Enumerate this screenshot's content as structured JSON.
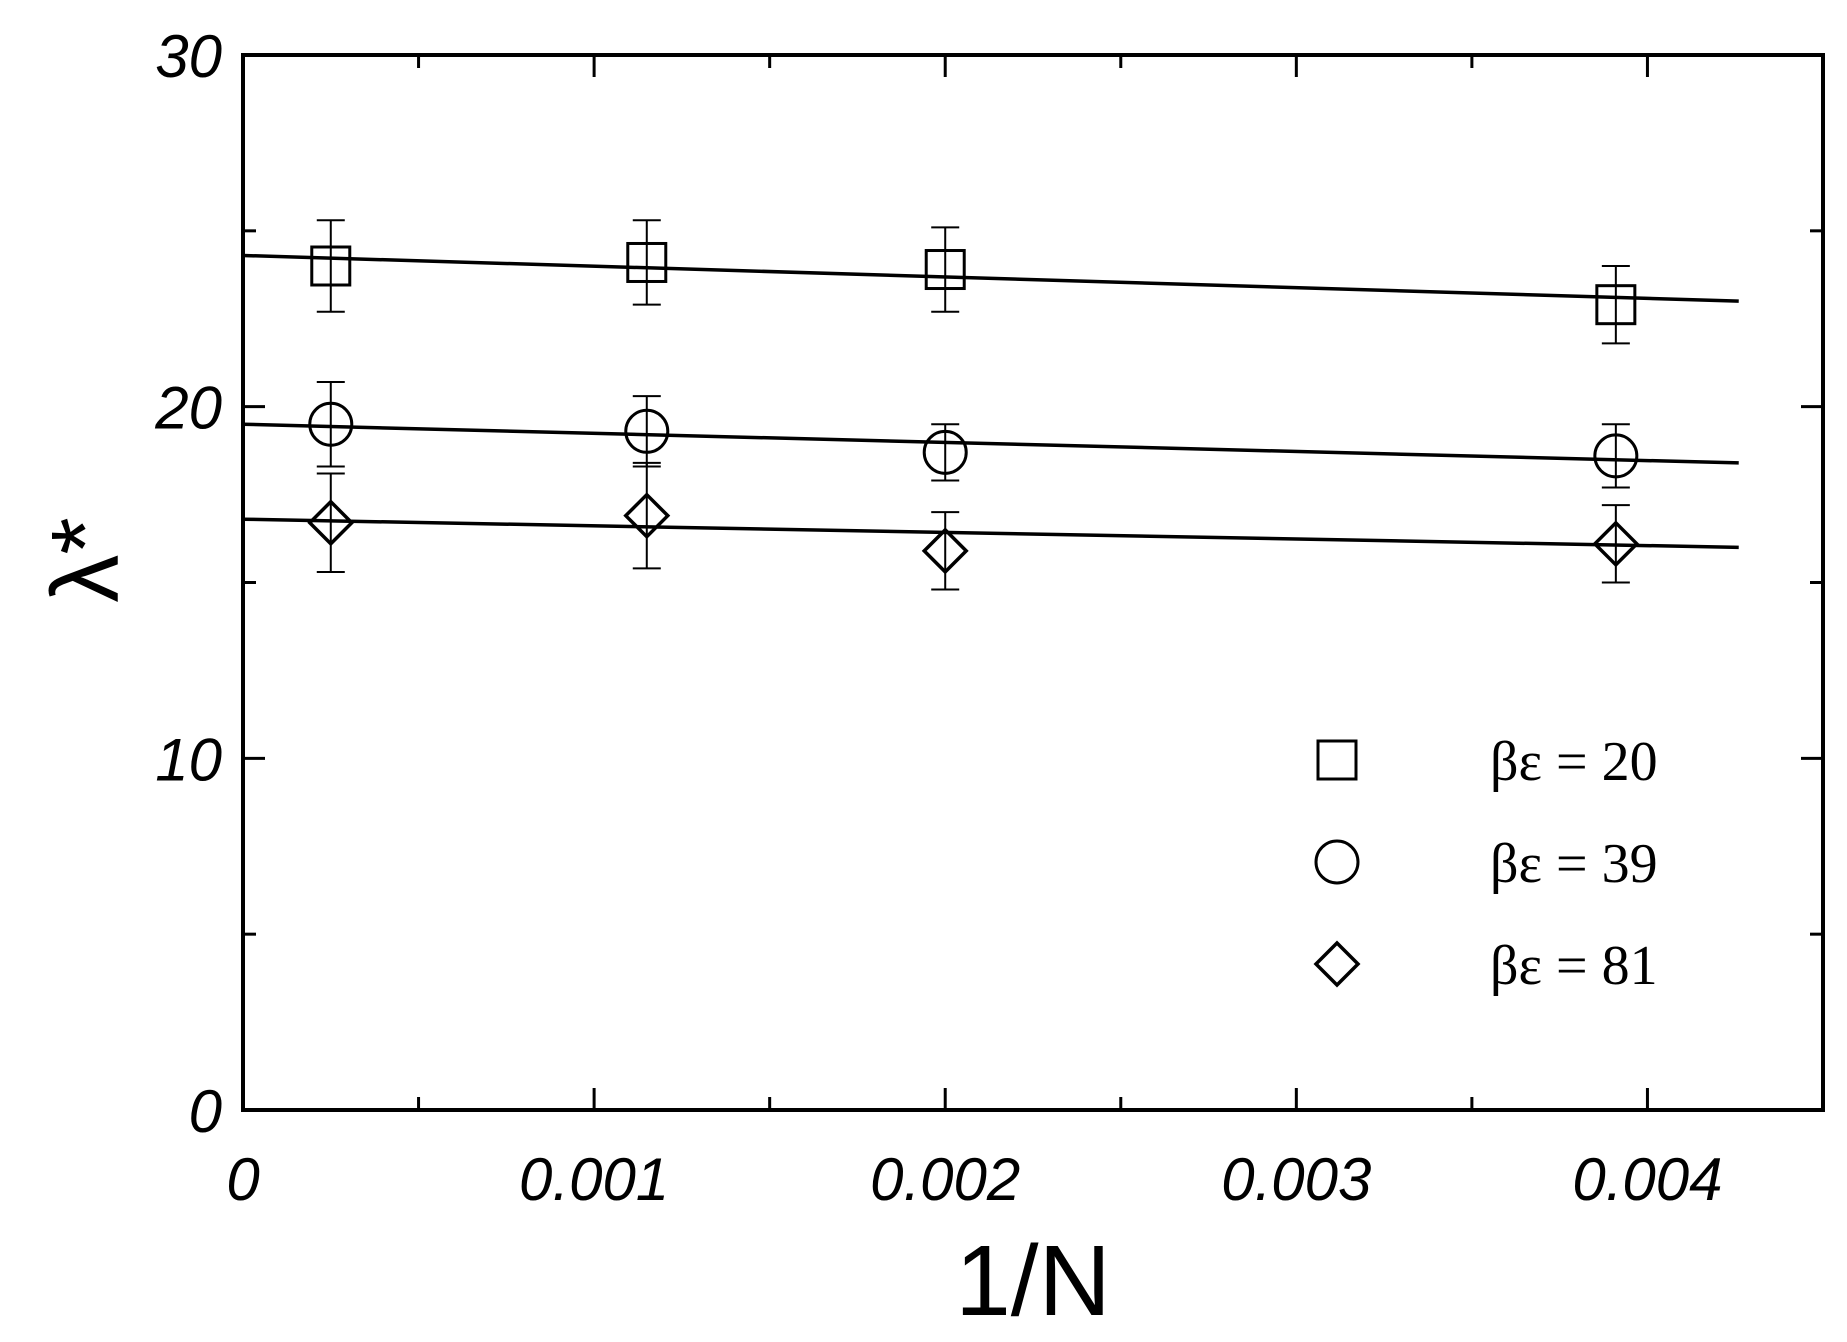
{
  "chart_data": {
    "type": "scatter",
    "title": "",
    "xlabel": "1/N",
    "ylabel": "λ*",
    "xlim": [
      0,
      0.0045
    ],
    "ylim": [
      0,
      30
    ],
    "x_ticks": [
      "0",
      "0.001",
      "0.002",
      "0.003",
      "0.004"
    ],
    "y_ticks": [
      "0",
      "10",
      "20",
      "30"
    ],
    "grid": false,
    "legend_position": "bottom-right",
    "x": [
      0.00025,
      0.00115,
      0.002,
      0.00391
    ],
    "series": [
      {
        "name": "βε = 20",
        "marker": "square",
        "values": [
          24.0,
          24.1,
          23.9,
          22.9
        ],
        "errors": [
          1.3,
          1.2,
          1.2,
          1.1
        ],
        "fit": {
          "x": [
            0,
            0.00426
          ],
          "y": [
            24.3,
            23.0
          ]
        }
      },
      {
        "name": "βε = 39",
        "marker": "circle",
        "values": [
          19.5,
          19.3,
          18.7,
          18.6
        ],
        "errors": [
          1.2,
          1.0,
          0.8,
          0.9
        ],
        "fit": {
          "x": [
            0,
            0.00426
          ],
          "y": [
            19.5,
            18.4
          ]
        }
      },
      {
        "name": "βε = 81",
        "marker": "diamond",
        "values": [
          16.7,
          16.9,
          15.9,
          16.1
        ],
        "errors": [
          1.4,
          1.5,
          1.1,
          1.1
        ],
        "fit": {
          "x": [
            0,
            0.00426
          ],
          "y": [
            16.8,
            16.0
          ]
        }
      }
    ]
  }
}
